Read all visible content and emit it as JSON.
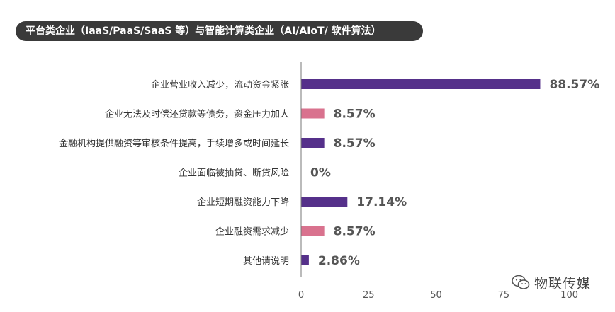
{
  "title": "平台类企业（IaaS/PaaS/SaaS 等）与智能计算类企业（AI/AIoT/ 软件算法）",
  "watermark": {
    "text": "物联传媒",
    "icon": "wechat-icon"
  },
  "colors": {
    "purple": "#55308a",
    "pink": "#d9728e",
    "axis": "#777777",
    "title_bg": "#3a3a3a"
  },
  "chart_data": {
    "type": "bar",
    "orientation": "horizontal",
    "categories": [
      "企业营业收入减少，流动资金紧张",
      "企业无法及时偿还贷款等债务，资金压力加大",
      "金融机构提供融资等审核条件提高，手续增多或时间延长",
      "企业面临被抽贷、断贷风险",
      "企业短期融资能力下降",
      "企业融资需求减少",
      "其他请说明"
    ],
    "values": [
      88.57,
      8.57,
      8.57,
      0,
      17.14,
      8.57,
      2.86
    ],
    "value_labels": [
      "88.57%",
      "8.57%",
      "8.57%",
      "0%",
      "17.14%",
      "8.57%",
      "2.86%"
    ],
    "bar_colors": [
      "purple",
      "pink",
      "purple",
      "purple",
      "purple",
      "pink",
      "purple"
    ],
    "xlim": [
      0,
      100
    ],
    "xticks": [
      0,
      25,
      50,
      75,
      100
    ],
    "grid": false,
    "legend": "none"
  }
}
